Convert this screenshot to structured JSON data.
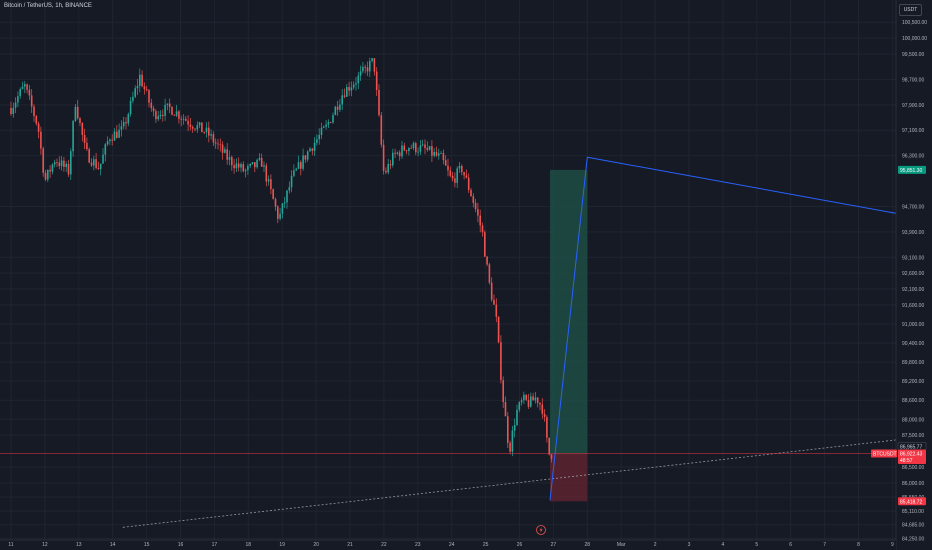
{
  "header": {
    "title": "Bitcoin / TetherUS, 1h, BINANCE",
    "currency": "USDT"
  },
  "colors": {
    "background": "#161a25",
    "up_candle": "#26a69a",
    "down_candle": "#ef5350",
    "grid": "#1f2431",
    "current_price_line": "#f23645",
    "profit_zone": "#1e4d45",
    "loss_zone": "#5c2430",
    "projection_line": "#2962ff"
  },
  "chart_data": {
    "type": "candlestick",
    "interval": "1h",
    "ylim": [
      84200,
      101200
    ],
    "y_ticks": [
      "100,500.00",
      "100,000.00",
      "99,500.00",
      "98,700.00",
      "97,900.00",
      "97,100.00",
      "96,300.00",
      "94,700.00",
      "93,900.00",
      "93,100.00",
      "92,600.00",
      "92,100.00",
      "91,600.00",
      "91,000.00",
      "90,400.00",
      "89,800.00",
      "89,200.00",
      "88,600.00",
      "88,000.00",
      "87,500.00",
      "86,500.00",
      "86,000.00",
      "85,550.00",
      "85,110.00",
      "84,685.00",
      "84,250.00"
    ],
    "x_ticks": [
      "11",
      "12",
      "13",
      "14",
      "15",
      "16",
      "17",
      "18",
      "19",
      "20",
      "21",
      "22",
      "23",
      "24",
      "25",
      "26",
      "27",
      "28",
      "Mar",
      "2",
      "3",
      "4",
      "5",
      "6",
      "7",
      "8",
      "9"
    ],
    "x_axis_icon": "lightning-icon",
    "price_path": [
      {
        "day": 11.0,
        "price": 97800
      },
      {
        "day": 11.4,
        "price": 98500
      },
      {
        "day": 11.8,
        "price": 97200
      },
      {
        "day": 12.0,
        "price": 95500
      },
      {
        "day": 12.3,
        "price": 96200
      },
      {
        "day": 12.7,
        "price": 95800
      },
      {
        "day": 12.9,
        "price": 98000
      },
      {
        "day": 13.2,
        "price": 96400
      },
      {
        "day": 13.6,
        "price": 95900
      },
      {
        "day": 13.9,
        "price": 96900
      },
      {
        "day": 14.3,
        "price": 97100
      },
      {
        "day": 14.8,
        "price": 98800
      },
      {
        "day": 15.2,
        "price": 97600
      },
      {
        "day": 15.7,
        "price": 97800
      },
      {
        "day": 16.2,
        "price": 97400
      },
      {
        "day": 16.8,
        "price": 97000
      },
      {
        "day": 17.4,
        "price": 96200
      },
      {
        "day": 17.9,
        "price": 95800
      },
      {
        "day": 18.4,
        "price": 96100
      },
      {
        "day": 18.9,
        "price": 94300
      },
      {
        "day": 19.3,
        "price": 95600
      },
      {
        "day": 19.8,
        "price": 96500
      },
      {
        "day": 20.3,
        "price": 97200
      },
      {
        "day": 20.8,
        "price": 98300
      },
      {
        "day": 21.2,
        "price": 98700
      },
      {
        "day": 21.7,
        "price": 99300
      },
      {
        "day": 22.0,
        "price": 95700
      },
      {
        "day": 22.3,
        "price": 96300
      },
      {
        "day": 22.7,
        "price": 96600
      },
      {
        "day": 23.2,
        "price": 96500
      },
      {
        "day": 23.7,
        "price": 96200
      },
      {
        "day": 24.0,
        "price": 95500
      },
      {
        "day": 24.3,
        "price": 95900
      },
      {
        "day": 24.6,
        "price": 95000
      },
      {
        "day": 24.9,
        "price": 93900
      },
      {
        "day": 25.1,
        "price": 92300
      },
      {
        "day": 25.3,
        "price": 91300
      },
      {
        "day": 25.5,
        "price": 88800
      },
      {
        "day": 25.7,
        "price": 87000
      },
      {
        "day": 25.9,
        "price": 88200
      },
      {
        "day": 26.1,
        "price": 88600
      },
      {
        "day": 26.3,
        "price": 88500
      },
      {
        "day": 26.5,
        "price": 88700
      },
      {
        "day": 26.7,
        "price": 88300
      },
      {
        "day": 26.85,
        "price": 86900
      },
      {
        "day": 27.0,
        "price": 86922
      }
    ],
    "position": {
      "entry": 86922.43,
      "target": 95851.3,
      "stop": 85418.72,
      "start_day": 26.9,
      "end_day": 28.0
    },
    "projection": {
      "points": [
        {
          "day": 26.9,
          "price": 85450
        },
        {
          "day": 28.0,
          "price": 96250
        },
        {
          "day": 39.6,
          "price": 94000
        }
      ]
    },
    "trendline": {
      "points": [
        {
          "day": 14.3,
          "price": 84600
        },
        {
          "day": 40.0,
          "price": 87700
        }
      ]
    },
    "price_tags": [
      {
        "label": "95,851.30",
        "price": 95851.3,
        "bg": "#089981",
        "fg": "#ffffff"
      },
      {
        "label": "86,965.77",
        "price": 87150,
        "bg": "#161a25",
        "fg": "#d1d4dc",
        "border": "#434651"
      },
      {
        "label": "BTCUSDT",
        "price": 86922.43,
        "bg": "#f23645",
        "fg": "#ffffff",
        "left": true
      },
      {
        "label": "86,922.43",
        "price": 86922.43,
        "bg": "#f23645",
        "fg": "#ffffff"
      },
      {
        "label": "48:57",
        "price": 86720,
        "bg": "#f23645",
        "fg": "#ffffff"
      },
      {
        "label": "85,418.72",
        "price": 85418.72,
        "bg": "#f23645",
        "fg": "#ffffff"
      }
    ]
  }
}
